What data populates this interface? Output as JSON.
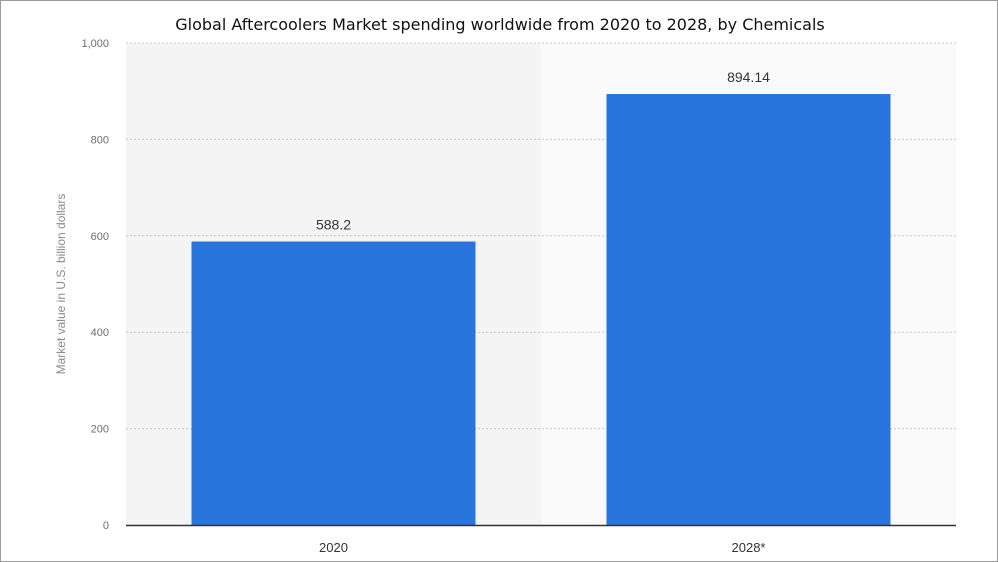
{
  "chart_data": {
    "type": "bar",
    "title": "Global Aftercoolers Market spending worldwide from 2020 to 2028, by Chemicals",
    "ylabel": "Market value in U.S. billion dollars",
    "xlabel": "",
    "categories": [
      "2020",
      "2028*"
    ],
    "values": [
      588.2,
      894.14
    ],
    "value_labels": [
      "588.2",
      "894.14"
    ],
    "yticks": [
      0,
      200,
      400,
      600,
      800,
      1000
    ],
    "ytick_labels": [
      "0",
      "200",
      "400",
      "600",
      "800",
      "1,000"
    ],
    "ylim": [
      0,
      1000
    ],
    "grid": true,
    "legend": "none",
    "colors": {
      "bar": "#2876dd",
      "background": "#f4f4f4",
      "forecast_background": "#fafafa",
      "grid": "#c8c8c8",
      "axis": "#333333"
    }
  }
}
